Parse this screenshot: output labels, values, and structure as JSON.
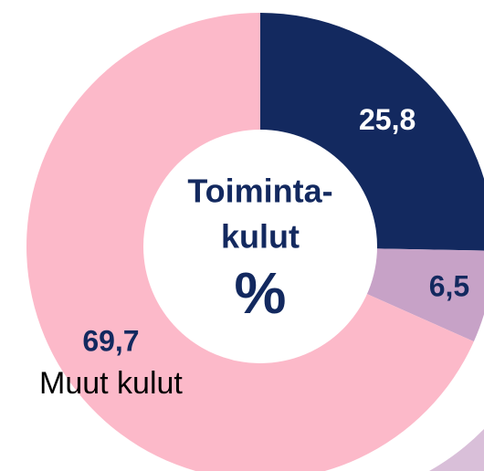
{
  "chart_data": {
    "type": "donut",
    "center_text": [
      "Toiminta-",
      "kulut"
    ],
    "center_unit": "%",
    "categories": [
      null,
      null,
      "Muut kulut"
    ],
    "values": [
      25.8,
      6.5,
      69.7
    ],
    "value_labels": [
      "25,8",
      "6,5",
      "69,7"
    ],
    "colors": [
      "#13295f",
      "#c7a2c7",
      "#fcb9c9"
    ]
  }
}
